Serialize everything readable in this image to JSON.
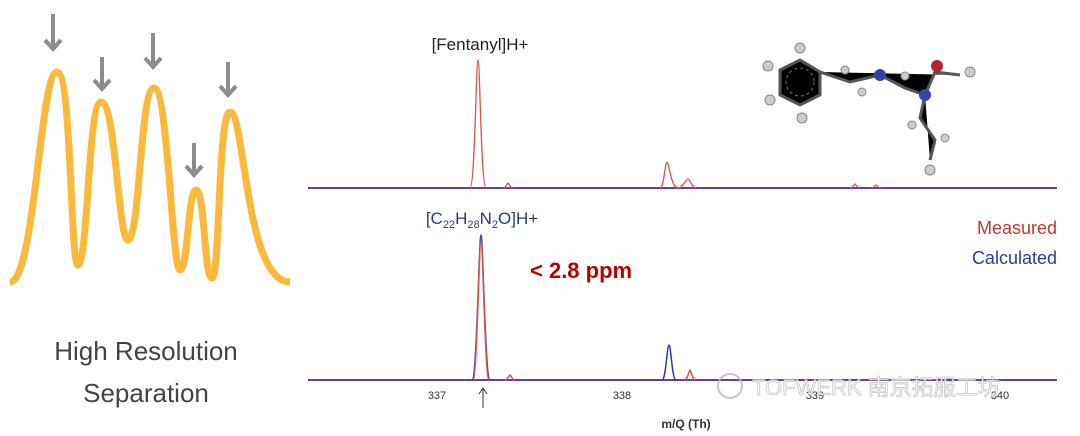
{
  "illustration": {
    "caption_line1": "High Resolution",
    "caption_line2": "Separation"
  },
  "spectrum": {
    "top_label": "[Fentanyl]H+",
    "formula": {
      "p1": "[C",
      "s1": "22",
      "p2": "H",
      "s2": "28",
      "p3": "N",
      "s3": "2",
      "p4": "O]H+"
    },
    "ppm_note": "< 2.8 ppm",
    "legend": {
      "measured": "Measured",
      "calculated": "Calculated"
    },
    "x_ticks": [
      "337",
      "338",
      "339",
      "340"
    ],
    "x_axis_label": "m/Q (Th)"
  },
  "watermark": "TOFWERK 南京拓服工坊"
}
